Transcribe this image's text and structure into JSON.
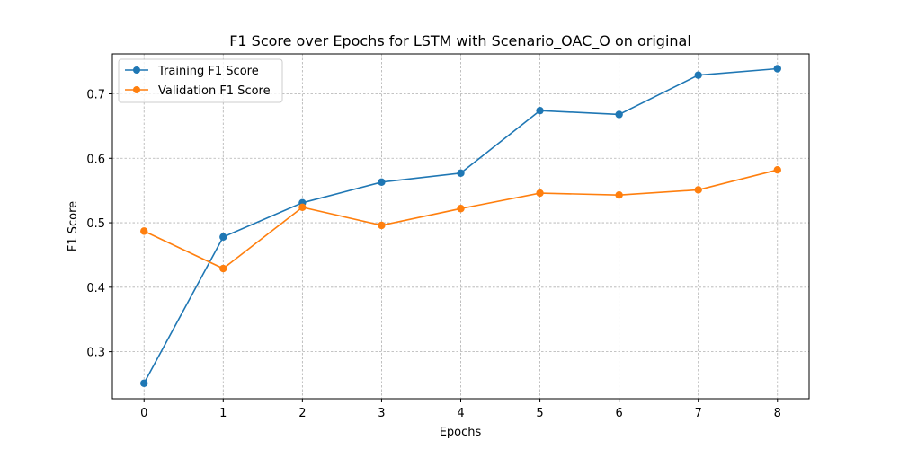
{
  "chart_data": {
    "type": "line",
    "title": "F1 Score over Epochs for LSTM with Scenario_OAC_O on original",
    "xlabel": "Epochs",
    "ylabel": "F1 Score",
    "x": [
      0,
      1,
      2,
      3,
      4,
      5,
      6,
      7,
      8
    ],
    "xlim": [
      -0.4,
      8.4
    ],
    "ylim": [
      0.227,
      0.762
    ],
    "xticks": [
      "0",
      "1",
      "2",
      "3",
      "4",
      "5",
      "6",
      "7",
      "8"
    ],
    "yticks": [
      "0.3",
      "0.4",
      "0.5",
      "0.6",
      "0.7"
    ],
    "grid": true,
    "legend_position": "top-left",
    "series": [
      {
        "name": "Training F1 Score",
        "color": "#1f77b4",
        "marker": "circle",
        "values": [
          0.251,
          0.478,
          0.531,
          0.563,
          0.577,
          0.674,
          0.668,
          0.729,
          0.739
        ]
      },
      {
        "name": "Validation F1 Score",
        "color": "#ff7f0e",
        "marker": "circle",
        "values": [
          0.487,
          0.429,
          0.524,
          0.496,
          0.522,
          0.546,
          0.543,
          0.551,
          0.582
        ]
      }
    ]
  }
}
